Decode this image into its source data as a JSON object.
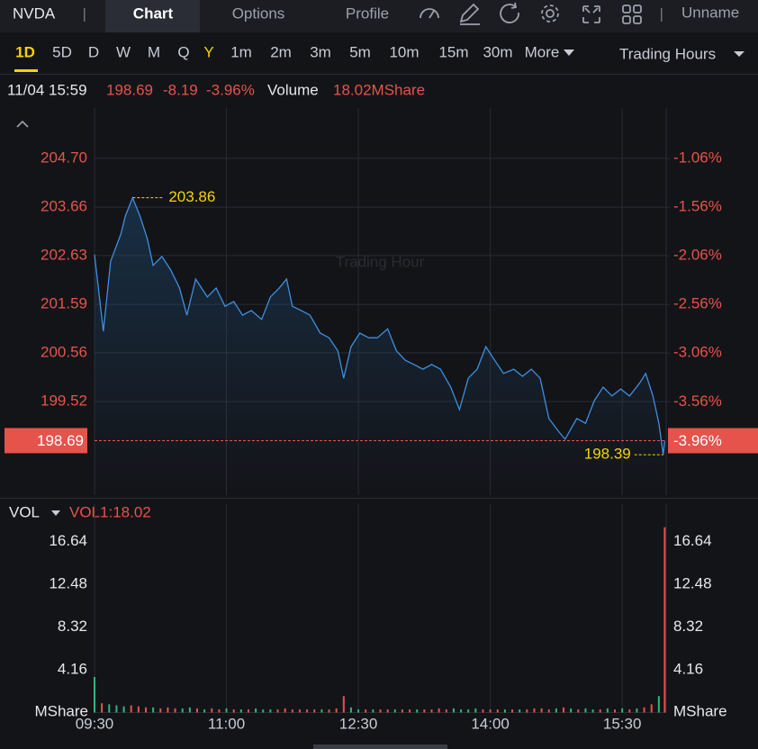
{
  "header": {
    "symbol": "NVDA",
    "tabs": [
      "Chart",
      "Options",
      "Profile"
    ],
    "user": "Unname"
  },
  "periods": [
    "1D",
    "5D",
    "D",
    "W",
    "M",
    "Q",
    "Y",
    "1m",
    "2m",
    "3m",
    "5m",
    "10m",
    "15m",
    "30m",
    "More"
  ],
  "session": "Trading Hours",
  "quote": {
    "time": "11/04 15:59",
    "price": "198.69",
    "change": "-8.19",
    "change_pct": "-3.96%",
    "volume_label": "Volume",
    "volume": "18.02MShare"
  },
  "chart_data": [
    {
      "type": "line",
      "watermark": "Trading Hour",
      "x": [
        "09:30",
        "09:36",
        "09:41",
        "09:48",
        "09:51",
        "09:56",
        "10:01",
        "10:06",
        "10:10",
        "10:16",
        "10:22",
        "10:28",
        "10:33",
        "10:39",
        "10:47",
        "10:53",
        "10:59",
        "11:05",
        "11:11",
        "11:17",
        "11:24",
        "11:30",
        "11:36",
        "11:41",
        "11:45",
        "11:51",
        "11:57",
        "12:04",
        "12:10",
        "12:16",
        "12:20",
        "12:25",
        "12:31",
        "12:37",
        "12:43",
        "12:50",
        "12:56",
        "13:02",
        "13:08",
        "13:14",
        "13:20",
        "13:26",
        "13:33",
        "13:39",
        "13:45",
        "13:51",
        "13:57",
        "14:03",
        "14:09",
        "14:16",
        "14:22",
        "14:28",
        "14:34",
        "14:40",
        "14:46",
        "14:51",
        "14:59",
        "15:05",
        "15:11",
        "15:17",
        "15:23",
        "15:29",
        "15:35",
        "15:42",
        "15:46",
        "15:51",
        "15:55",
        "15:58",
        "15:59"
      ],
      "series": [
        {
          "color": "#3d8fe0",
          "values": [
            202.65,
            201.02,
            202.51,
            203.09,
            203.47,
            203.86,
            203.47,
            202.99,
            202.42,
            202.61,
            202.32,
            201.94,
            201.36,
            202.13,
            201.75,
            201.94,
            201.55,
            201.65,
            201.36,
            201.46,
            201.27,
            201.75,
            201.94,
            202.13,
            201.55,
            201.46,
            201.36,
            200.98,
            200.88,
            200.6,
            200.02,
            200.69,
            200.98,
            200.88,
            200.88,
            201.07,
            200.6,
            200.4,
            200.31,
            200.21,
            200.31,
            200.21,
            199.83,
            199.35,
            200.02,
            200.21,
            200.69,
            200.4,
            200.12,
            200.21,
            200.06,
            200.21,
            200.02,
            199.16,
            198.91,
            198.72,
            199.16,
            199.06,
            199.54,
            199.83,
            199.64,
            199.79,
            199.64,
            199.92,
            200.12,
            199.64,
            199.06,
            198.39,
            198.69
          ]
        }
      ],
      "xlim": [
        "09:30",
        "16:00"
      ],
      "ylim": [
        197.53,
        205.77
      ],
      "yticks": [
        {
          "value": 204.7,
          "label": "204.70"
        },
        203.66,
        202.63,
        201.59,
        200.56,
        199.52
      ],
      "y2lim": [
        -4.52,
        -0.54
      ],
      "y2ticks": [
        {
          "value": -1.06,
          "label": "-1.06%"
        },
        {
          "value": -1.56,
          "label": "-1.56%"
        },
        {
          "value": -2.06,
          "label": "-2.06%"
        },
        {
          "value": -2.56,
          "label": "-2.56%"
        },
        {
          "value": -3.06,
          "label": "-3.06%"
        },
        {
          "value": -3.56,
          "label": "-3.56%"
        }
      ],
      "max": {
        "x": "09:56",
        "value": 203.86
      },
      "min": {
        "x": "15:58",
        "value": 198.39
      },
      "last_price": 198.69,
      "last_change": {
        "value": -3.96,
        "label": "-3.96%"
      },
      "grid": true
    },
    {
      "type": "bar",
      "indicator": "VOL",
      "legend": "VOL1:18.02",
      "unit": "MShare",
      "x": [
        "09:30",
        "09:35",
        "09:40",
        "09:45",
        "09:50",
        "09:55",
        "10:00",
        "10:05",
        "10:10",
        "10:15",
        "10:20",
        "10:25",
        "10:30",
        "10:35",
        "10:40",
        "10:45",
        "10:50",
        "10:55",
        "11:00",
        "11:05",
        "11:10",
        "11:15",
        "11:20",
        "11:25",
        "11:30",
        "11:35",
        "11:40",
        "11:45",
        "11:50",
        "11:55",
        "12:00",
        "12:05",
        "12:10",
        "12:15",
        "12:20",
        "12:25",
        "12:30",
        "12:35",
        "12:40",
        "12:45",
        "12:50",
        "12:55",
        "13:00",
        "13:05",
        "13:10",
        "13:15",
        "13:20",
        "13:25",
        "13:30",
        "13:35",
        "13:40",
        "13:45",
        "13:50",
        "13:55",
        "14:00",
        "14:05",
        "14:10",
        "14:15",
        "14:20",
        "14:25",
        "14:30",
        "14:35",
        "14:40",
        "14:45",
        "14:50",
        "14:55",
        "15:00",
        "15:05",
        "15:10",
        "15:15",
        "15:20",
        "15:25",
        "15:30",
        "15:35",
        "15:40",
        "15:45",
        "15:50",
        "15:55",
        "15:59"
      ],
      "values": [
        3.46,
        0.9,
        0.8,
        0.7,
        0.6,
        0.7,
        0.6,
        0.5,
        0.5,
        0.4,
        0.5,
        0.4,
        0.4,
        0.5,
        0.4,
        0.3,
        0.4,
        0.3,
        0.4,
        0.3,
        0.3,
        0.3,
        0.4,
        0.3,
        0.3,
        0.3,
        0.4,
        0.3,
        0.3,
        0.3,
        0.3,
        0.3,
        0.3,
        0.4,
        1.6,
        0.5,
        0.3,
        0.3,
        0.3,
        0.3,
        0.3,
        0.3,
        0.3,
        0.3,
        0.3,
        0.3,
        0.3,
        0.4,
        0.3,
        0.4,
        0.3,
        0.3,
        0.4,
        0.3,
        0.3,
        0.3,
        0.3,
        0.3,
        0.3,
        0.3,
        0.4,
        0.4,
        0.3,
        0.4,
        0.5,
        0.4,
        0.3,
        0.4,
        0.3,
        0.3,
        0.4,
        0.3,
        0.4,
        0.3,
        0.4,
        0.5,
        0.8,
        1.6,
        18.02
      ],
      "colors": [
        "#2fb67c",
        "#e5534b",
        "#2fb67c",
        "#2fb67c",
        "#2fb67c",
        "#e5534b",
        "#e5534b",
        "#e5534b",
        "#2fb67c",
        "#e5534b",
        "#e5534b",
        "#e5534b",
        "#2fb67c",
        "#2fb67c",
        "#e5534b",
        "#2fb67c",
        "#e5534b",
        "#e5534b",
        "#2fb67c",
        "#e5534b",
        "#2fb67c",
        "#e5534b",
        "#2fb67c",
        "#2fb67c",
        "#2fb67c",
        "#e5534b",
        "#e5534b",
        "#e5534b",
        "#e5534b",
        "#e5534b",
        "#e5534b",
        "#2fb67c",
        "#e5534b",
        "#e5534b",
        "#e5534b",
        "#2fb67c",
        "#2fb67c",
        "#e5534b",
        "#2fb67c",
        "#e5534b",
        "#e5534b",
        "#2fb67c",
        "#e5534b",
        "#e5534b",
        "#2fb67c",
        "#e5534b",
        "#e5534b",
        "#e5534b",
        "#e5534b",
        "#2fb67c",
        "#2fb67c",
        "#2fb67c",
        "#2fb67c",
        "#e5534b",
        "#e5534b",
        "#e5534b",
        "#2fb67c",
        "#e5534b",
        "#2fb67c",
        "#e5534b",
        "#e5534b",
        "#e5534b",
        "#e5534b",
        "#2fb67c",
        "#e5534b",
        "#2fb67c",
        "#e5534b",
        "#2fb67c",
        "#2fb67c",
        "#e5534b",
        "#2fb67c",
        "#e5534b",
        "#2fb67c",
        "#e5534b",
        "#2fb67c",
        "#e5534b",
        "#e5534b",
        "#2fb67c",
        "#e5534b"
      ],
      "xlim": [
        "09:30",
        "16:00"
      ],
      "xticks": [
        "09:30",
        "11:00",
        "12:30",
        "14:00",
        "15:30"
      ],
      "ylim": [
        0,
        18.52
      ],
      "yticks": [
        4.16,
        8.32,
        12.48,
        16.64
      ]
    }
  ]
}
